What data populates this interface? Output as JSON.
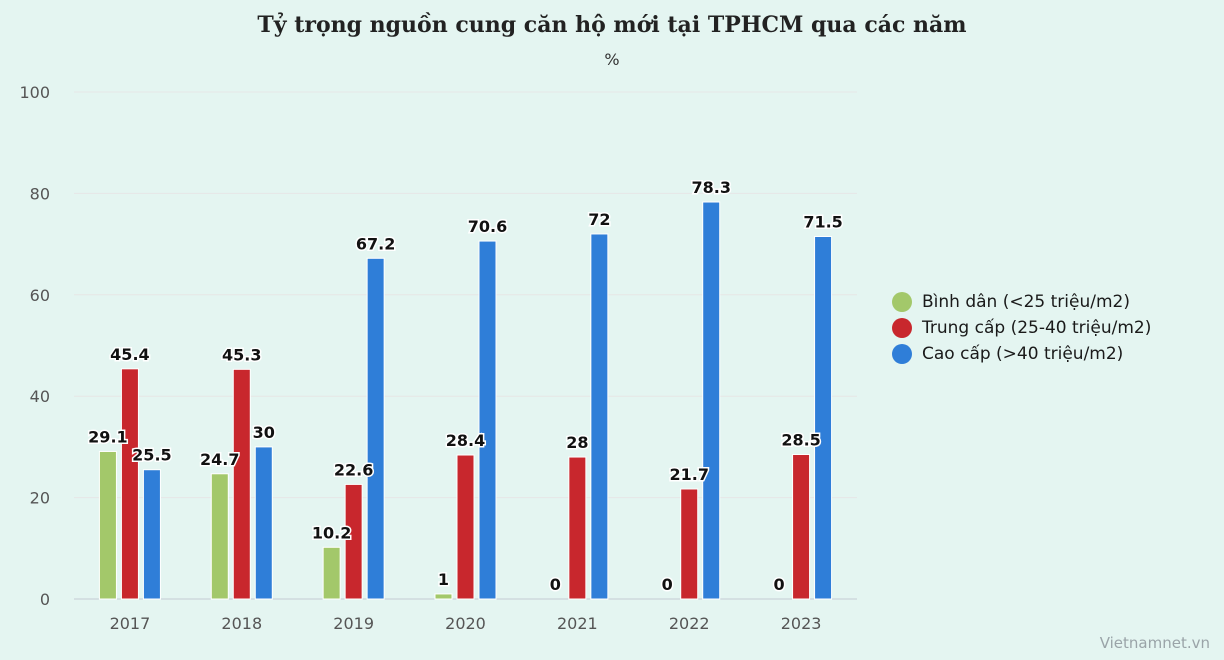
{
  "chart_data": {
    "type": "bar",
    "title": "Tỷ trọng nguồn cung căn hộ mới tại TPHCM qua các năm",
    "subtitle": "%",
    "xlabel": "",
    "ylabel": "",
    "categories": [
      "2017",
      "2018",
      "2019",
      "2020",
      "2021",
      "2022",
      "2023"
    ],
    "ylim": [
      0,
      100
    ],
    "yticks": [
      0,
      20,
      40,
      60,
      80,
      100
    ],
    "grid": true,
    "legend_position": "right",
    "series": [
      {
        "name": "Bình dân (<25 triệu/m2)",
        "color": "#a3c86a",
        "values": [
          29.1,
          24.7,
          10.2,
          1,
          0,
          0,
          0
        ]
      },
      {
        "name": "Trung cấp (25-40 triệu/m2)",
        "color": "#c8272d",
        "values": [
          45.4,
          45.3,
          22.6,
          28.4,
          28,
          21.7,
          28.5
        ]
      },
      {
        "name": "Cao cấp (>40 triệu/m2)",
        "color": "#2f7ed8",
        "values": [
          25.5,
          30,
          67.2,
          70.6,
          72,
          78.3,
          71.5
        ]
      }
    ]
  },
  "watermark": "Vietnamnet.vn"
}
